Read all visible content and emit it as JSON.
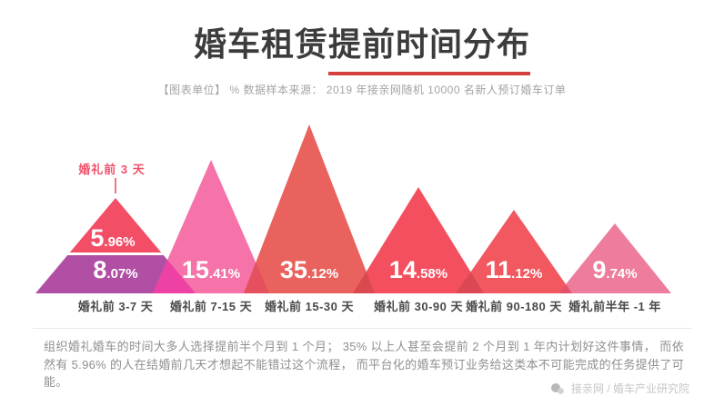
{
  "header": {
    "title_full": "婚车租赁提前时间分布",
    "title_part1": "婚车租赁",
    "title_part2": "提前时间分布",
    "underline_color": "#d44040",
    "subtitle": "【图表单位】 %  数据样本来源： 2019 年接亲网随机 10000 名新人预订婚车订单"
  },
  "chart_data": {
    "type": "bar",
    "style": "triangle-mountain infographic, values shown as stylized peaks",
    "unit": "%",
    "categories": [
      "婚礼前 3-7 天",
      "婚礼前 7-15 天",
      "婚礼前 15-30 天",
      "婚礼前 30-90 天",
      "婚礼前 90-180 天",
      "婚礼前半年 -1 年"
    ],
    "values": [
      8.07,
      15.41,
      35.12,
      14.58,
      11.12,
      9.74
    ],
    "stacked_segment": {
      "category": "婚礼前 3-7 天",
      "label": "婚礼前 3 天",
      "value": 5.96
    },
    "colors": [
      "#b14fa5",
      "#f573a8",
      "#ea625d",
      "#f44f5e",
      "#f15860",
      "#ee7c9c"
    ],
    "stacked_segment_color": "#f24e66",
    "overlap_colors": [
      "#ee41a4",
      "#e5505f",
      "#d9494f",
      "#db4853",
      "#e4516b"
    ],
    "value_text_color": "#ffffff",
    "annotation_color": "#f2506a",
    "category_text_color": "#4a4a4a",
    "legend": "none",
    "grid": "off"
  },
  "footer": {
    "note": "组织婚礼婚车的时间大多人选择提前半个月到 1 个月； 35% 以上人甚至会提前 2 个月到 1 年内计划好这件事情， 而依然有 5.96% 的人在结婚前几天才想起不能错过这个流程， 而平台化的婚车预订业务给这类本不可能完成的任务提供了可能。",
    "watermark": "接亲网 / 婚车产业研究院"
  }
}
